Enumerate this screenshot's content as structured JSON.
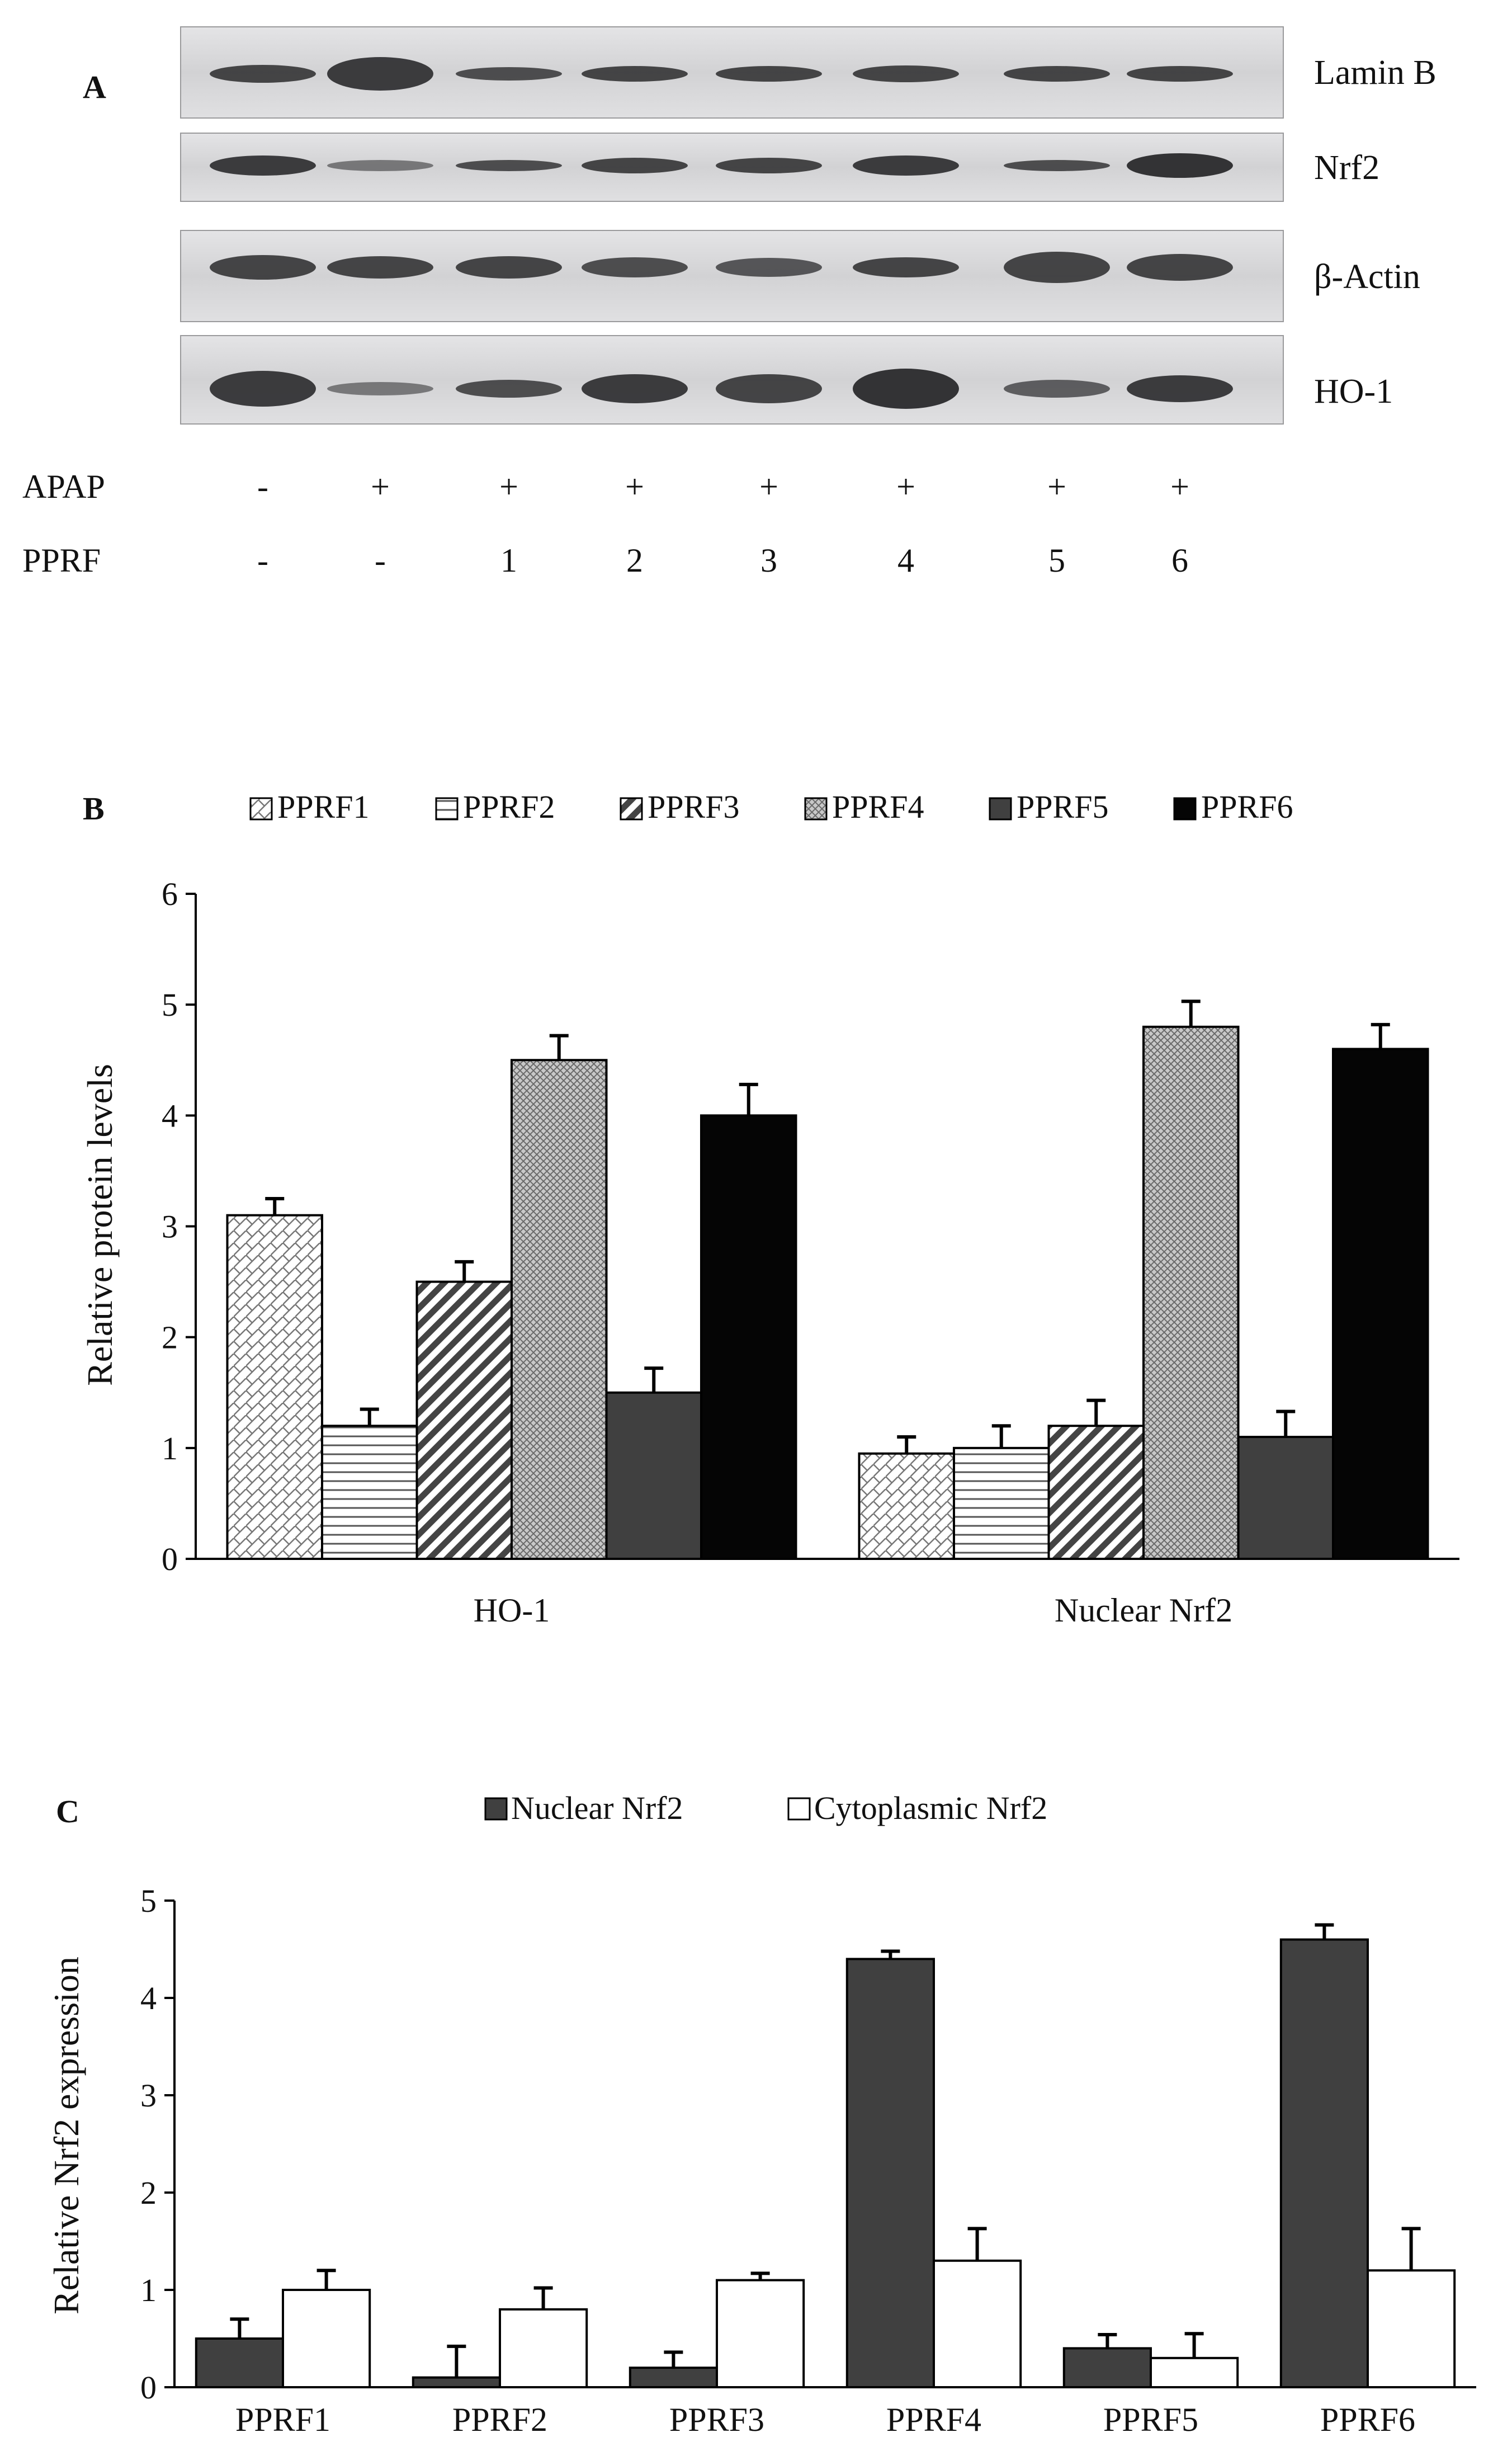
{
  "panel_a": {
    "label": "A",
    "blot_labels": [
      "Lamin B",
      "Nrf2",
      "β-Actin",
      "HO-1"
    ],
    "rows": [
      {
        "name": "APAP",
        "values": [
          "-",
          "+",
          "+",
          "+",
          "+",
          "+",
          "+",
          "+"
        ]
      },
      {
        "name": "PPRF",
        "values": [
          "-",
          "-",
          "1",
          "2",
          "3",
          "4",
          "5",
          "6"
        ]
      }
    ]
  },
  "chart_data": [
    {
      "panel": "B",
      "type": "bar",
      "categories": [
        "HO-1",
        "Nuclear Nrf2"
      ],
      "series": [
        {
          "name": "PPRF1",
          "pattern": "diag-cross",
          "values": [
            3.1,
            0.95
          ],
          "errors": [
            0.15,
            0.15
          ]
        },
        {
          "name": "PPRF2",
          "pattern": "horizontal",
          "values": [
            1.2,
            1.0
          ],
          "errors": [
            0.15,
            0.2
          ]
        },
        {
          "name": "PPRF3",
          "pattern": "diagonal",
          "values": [
            2.5,
            1.2
          ],
          "errors": [
            0.18,
            0.23
          ]
        },
        {
          "name": "PPRF4",
          "pattern": "crosshatch",
          "values": [
            4.5,
            4.8
          ],
          "errors": [
            0.22,
            0.23
          ]
        },
        {
          "name": "PPRF5",
          "pattern": "darkgray",
          "values": [
            1.5,
            1.1
          ],
          "errors": [
            0.22,
            0.23
          ]
        },
        {
          "name": "PPRF6",
          "pattern": "black",
          "values": [
            4.0,
            4.6
          ],
          "errors": [
            0.28,
            0.22
          ]
        }
      ],
      "title": "",
      "xlabel": "",
      "ylabel": "Relative protein levels",
      "ylim": [
        0,
        6
      ],
      "yticks": [
        0,
        1,
        2,
        3,
        4,
        5,
        6
      ],
      "legend": "top"
    },
    {
      "panel": "C",
      "type": "bar",
      "categories": [
        "PPRF1",
        "PPRF2",
        "PPRF3",
        "PPRF4",
        "PPRF5",
        "PPRF6"
      ],
      "series": [
        {
          "name": "Nuclear Nrf2",
          "color": "#404040",
          "values": [
            0.5,
            0.1,
            0.2,
            4.4,
            0.4,
            4.6
          ],
          "errors": [
            0.2,
            0.32,
            0.16,
            0.08,
            0.14,
            0.15
          ]
        },
        {
          "name": "Cytoplasmic Nrf2",
          "color": "#ffffff",
          "values": [
            1.0,
            0.8,
            1.1,
            1.3,
            0.3,
            1.2
          ],
          "errors": [
            0.2,
            0.22,
            0.07,
            0.33,
            0.25,
            0.43
          ]
        }
      ],
      "title": "",
      "xlabel": "",
      "ylabel": "Relative Nrf2 expression",
      "ylim": [
        0,
        5
      ],
      "yticks": [
        0,
        1,
        2,
        3,
        4,
        5
      ],
      "legend": "top"
    }
  ]
}
